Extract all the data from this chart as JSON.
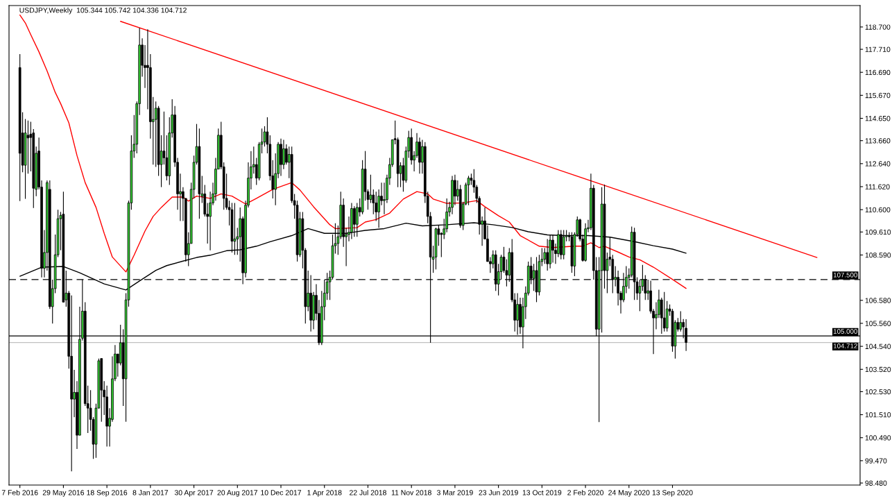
{
  "chart_data": {
    "type": "candlestick",
    "title": "USDJPY,Weekly  105.344 105.742 104.336 104.712",
    "color": "#000000",
    "x": [
      "2016-02-07",
      "2016-02-14",
      "2016-02-21",
      "2016-02-28",
      "2016-03-06",
      "2016-03-13",
      "2016-03-20",
      "2016-03-27",
      "2016-04-03",
      "2016-04-10",
      "2016-04-17",
      "2016-04-24",
      "2016-05-01",
      "2016-05-08",
      "2016-05-15",
      "2016-05-22",
      "2016-05-29",
      "2016-06-05",
      "2016-06-12",
      "2016-06-19",
      "2016-06-26",
      "2016-07-03",
      "2016-07-10",
      "2016-07-17",
      "2016-07-24",
      "2016-07-31",
      "2016-08-07",
      "2016-08-14",
      "2016-08-21",
      "2016-08-28",
      "2016-09-04",
      "2016-09-11",
      "2016-09-18",
      "2016-09-25",
      "2016-10-02",
      "2016-10-09",
      "2016-10-16",
      "2016-10-23",
      "2016-10-30",
      "2016-11-06",
      "2016-11-13",
      "2016-11-20",
      "2016-11-27",
      "2016-12-04",
      "2016-12-11",
      "2016-12-18",
      "2016-12-25",
      "2017-01-01",
      "2017-01-08",
      "2017-01-15",
      "2017-01-22",
      "2017-01-29",
      "2017-02-05",
      "2017-02-12",
      "2017-02-19",
      "2017-02-26",
      "2017-03-05",
      "2017-03-12",
      "2017-03-19",
      "2017-03-26",
      "2017-04-02",
      "2017-04-09",
      "2017-04-16",
      "2017-04-23",
      "2017-04-30",
      "2017-05-07",
      "2017-05-14",
      "2017-05-21",
      "2017-05-28",
      "2017-06-04",
      "2017-06-11",
      "2017-06-18",
      "2017-06-25",
      "2017-07-02",
      "2017-07-09",
      "2017-07-16",
      "2017-07-23",
      "2017-07-30",
      "2017-08-06",
      "2017-08-13",
      "2017-08-20",
      "2017-08-27",
      "2017-09-03",
      "2017-09-10",
      "2017-09-17",
      "2017-09-24",
      "2017-10-01",
      "2017-10-08",
      "2017-10-15",
      "2017-10-22",
      "2017-10-29",
      "2017-11-05",
      "2017-11-12",
      "2017-11-19",
      "2017-11-26",
      "2017-12-03",
      "2017-12-10",
      "2017-12-17",
      "2017-12-24",
      "2017-12-31",
      "2018-01-07",
      "2018-01-14",
      "2018-01-21",
      "2018-01-28",
      "2018-02-04",
      "2018-02-11",
      "2018-02-18",
      "2018-02-25",
      "2018-03-04",
      "2018-03-11",
      "2018-03-18",
      "2018-03-25",
      "2018-04-01",
      "2018-04-08",
      "2018-04-15",
      "2018-04-22",
      "2018-04-29",
      "2018-05-06",
      "2018-05-13",
      "2018-05-20",
      "2018-05-27",
      "2018-06-03",
      "2018-06-10",
      "2018-06-17",
      "2018-06-24",
      "2018-07-01",
      "2018-07-08",
      "2018-07-15",
      "2018-07-22",
      "2018-07-29",
      "2018-08-05",
      "2018-08-12",
      "2018-08-19",
      "2018-08-26",
      "2018-09-02",
      "2018-09-09",
      "2018-09-16",
      "2018-09-23",
      "2018-09-30",
      "2018-10-07",
      "2018-10-14",
      "2018-10-21",
      "2018-10-28",
      "2018-11-04",
      "2018-11-11",
      "2018-11-18",
      "2018-11-25",
      "2018-12-02",
      "2018-12-09",
      "2018-12-16",
      "2018-12-23",
      "2018-12-30",
      "2019-01-06",
      "2019-01-13",
      "2019-01-20",
      "2019-01-27",
      "2019-02-03",
      "2019-02-10",
      "2019-02-17",
      "2019-02-24",
      "2019-03-03",
      "2019-03-10",
      "2019-03-17",
      "2019-03-24",
      "2019-03-31",
      "2019-04-07",
      "2019-04-14",
      "2019-04-21",
      "2019-04-28",
      "2019-05-05",
      "2019-05-12",
      "2019-05-19",
      "2019-05-26",
      "2019-06-02",
      "2019-06-09",
      "2019-06-16",
      "2019-06-23",
      "2019-06-30",
      "2019-07-07",
      "2019-07-14",
      "2019-07-21",
      "2019-07-28",
      "2019-08-04",
      "2019-08-11",
      "2019-08-18",
      "2019-08-25",
      "2019-09-01",
      "2019-09-08",
      "2019-09-15",
      "2019-09-22",
      "2019-09-29",
      "2019-10-06",
      "2019-10-13",
      "2019-10-20",
      "2019-10-27",
      "2019-11-03",
      "2019-11-10",
      "2019-11-17",
      "2019-11-24",
      "2019-12-01",
      "2019-12-08",
      "2019-12-15",
      "2019-12-22",
      "2019-12-29",
      "2020-01-05",
      "2020-01-12",
      "2020-01-19",
      "2020-01-26",
      "2020-02-02",
      "2020-02-09",
      "2020-02-16",
      "2020-02-23",
      "2020-03-01",
      "2020-03-08",
      "2020-03-15",
      "2020-03-22",
      "2020-03-29",
      "2020-04-05",
      "2020-04-12",
      "2020-04-19",
      "2020-04-26",
      "2020-05-03",
      "2020-05-10",
      "2020-05-17",
      "2020-05-24",
      "2020-05-31",
      "2020-06-07",
      "2020-06-14",
      "2020-06-21",
      "2020-06-28",
      "2020-07-05",
      "2020-07-12",
      "2020-07-19",
      "2020-07-26",
      "2020-08-02",
      "2020-08-09",
      "2020-08-16",
      "2020-08-23",
      "2020-08-30",
      "2020-09-06",
      "2020-09-13",
      "2020-09-20",
      "2020-09-27",
      "2020-10-04",
      "2020-10-11",
      "2020-10-18"
    ],
    "ohlc": [
      [
        116.9,
        117.5,
        110.98,
        113.1
      ],
      [
        114.0,
        114.92,
        112.26,
        112.57
      ],
      [
        112.57,
        114.62,
        111.08,
        114.0
      ],
      [
        113.9,
        114.55,
        112.2,
        113.78
      ],
      [
        113.95,
        114.5,
        112.3,
        113.8
      ],
      [
        114.0,
        114.17,
        110.67,
        111.55
      ],
      [
        111.5,
        113.4,
        111.2,
        113.1
      ],
      [
        113.2,
        113.8,
        111.5,
        111.6
      ],
      [
        111.6,
        111.9,
        107.6,
        108.0
      ],
      [
        108.0,
        109.7,
        107.6,
        108.7
      ],
      [
        108.7,
        111.9,
        107.9,
        111.8
      ],
      [
        111.5,
        111.9,
        106.2,
        106.3
      ],
      [
        106.3,
        107.5,
        105.55,
        107.1
      ],
      [
        107.1,
        109.5,
        106.9,
        108.6
      ],
      [
        108.6,
        110.6,
        108.5,
        110.2
      ],
      [
        110.2,
        110.5,
        108.8,
        110.35
      ],
      [
        110.4,
        111.4,
        106.5,
        106.5
      ],
      [
        106.6,
        107.9,
        106.3,
        106.9
      ],
      [
        106.9,
        107.0,
        103.55,
        104.1
      ],
      [
        104.1,
        106.8,
        99.0,
        102.2
      ],
      [
        102.2,
        103.5,
        101.4,
        102.5
      ],
      [
        102.5,
        103.0,
        99.99,
        100.6
      ],
      [
        100.6,
        106.3,
        100.6,
        104.85
      ],
      [
        104.9,
        107.5,
        104.8,
        106.1
      ],
      [
        106.1,
        106.5,
        101.9,
        102.0
      ],
      [
        102.0,
        102.8,
        100.7,
        101.8
      ],
      [
        101.8,
        102.6,
        100.8,
        101.3
      ],
      [
        101.3,
        101.4,
        99.55,
        100.2
      ],
      [
        100.2,
        102.0,
        99.6,
        101.8
      ],
      [
        101.8,
        104.0,
        101.8,
        103.9
      ],
      [
        104.0,
        104.0,
        101.2,
        102.6
      ],
      [
        102.6,
        103.0,
        101.5,
        102.3
      ],
      [
        102.3,
        102.8,
        100.1,
        101.0
      ],
      [
        101.0,
        101.8,
        100.1,
        101.35
      ],
      [
        101.3,
        104.1,
        101.2,
        103.1
      ],
      [
        103.1,
        104.6,
        103.0,
        104.2
      ],
      [
        104.2,
        104.2,
        103.2,
        103.8
      ],
      [
        103.8,
        105.5,
        103.7,
        104.7
      ],
      [
        104.7,
        105.3,
        101.9,
        103.1
      ],
      [
        103.1,
        106.9,
        101.2,
        106.6
      ],
      [
        106.6,
        111.0,
        106.3,
        110.9
      ],
      [
        110.9,
        113.9,
        110.6,
        113.2
      ],
      [
        113.2,
        114.8,
        112.9,
        113.5
      ],
      [
        113.5,
        115.4,
        113.1,
        115.3
      ],
      [
        115.3,
        118.66,
        114.8,
        117.9
      ],
      [
        117.9,
        118.2,
        116.5,
        117.0
      ],
      [
        117.0,
        117.9,
        116.0,
        116.9
      ],
      [
        117.0,
        118.6,
        115.05,
        116.9
      ],
      [
        116.9,
        117.5,
        113.75,
        114.5
      ],
      [
        114.5,
        115.6,
        112.6,
        114.6
      ],
      [
        114.6,
        115.4,
        112.5,
        115.1
      ],
      [
        115.1,
        115.2,
        112.1,
        112.6
      ],
      [
        112.6,
        113.9,
        111.6,
        113.2
      ],
      [
        113.2,
        114.95,
        112.6,
        112.9
      ],
      [
        112.9,
        113.9,
        111.9,
        112.1
      ],
      [
        112.1,
        114.7,
        111.7,
        114.0
      ],
      [
        114.0,
        115.5,
        113.8,
        114.8
      ],
      [
        114.8,
        115.2,
        112.5,
        112.7
      ],
      [
        112.7,
        112.9,
        110.6,
        111.3
      ],
      [
        111.3,
        112.2,
        110.1,
        111.4
      ],
      [
        111.4,
        111.6,
        110.1,
        111.1
      ],
      [
        111.1,
        111.1,
        108.3,
        108.6
      ],
      [
        108.6,
        109.6,
        108.1,
        109.1
      ],
      [
        109.1,
        111.8,
        109.1,
        111.5
      ],
      [
        111.5,
        113.0,
        111.1,
        112.7
      ],
      [
        112.7,
        114.4,
        112.6,
        113.4
      ],
      [
        113.4,
        114.2,
        110.2,
        111.3
      ],
      [
        111.2,
        112.1,
        110.9,
        111.3
      ],
      [
        111.3,
        111.7,
        110.3,
        110.4
      ],
      [
        110.4,
        110.9,
        109.1,
        110.3
      ],
      [
        110.3,
        111.4,
        108.8,
        110.9
      ],
      [
        110.9,
        111.8,
        110.8,
        111.3
      ],
      [
        111.3,
        112.9,
        111.0,
        112.4
      ],
      [
        112.4,
        114.2,
        112.4,
        113.9
      ],
      [
        113.9,
        114.5,
        112.4,
        112.5
      ],
      [
        112.5,
        112.7,
        110.6,
        111.1
      ],
      [
        111.1,
        112.2,
        110.6,
        110.7
      ],
      [
        110.7,
        111.0,
        109.9,
        110.6
      ],
      [
        110.6,
        110.9,
        108.7,
        109.2
      ],
      [
        109.2,
        110.9,
        108.6,
        109.3
      ],
      [
        109.3,
        109.8,
        108.6,
        109.4
      ],
      [
        109.4,
        110.7,
        108.3,
        110.2
      ],
      [
        110.2,
        110.3,
        107.3,
        107.8
      ],
      [
        107.8,
        111.0,
        107.6,
        110.8
      ],
      [
        110.8,
        112.7,
        110.7,
        112.0
      ],
      [
        112.0,
        113.2,
        111.5,
        112.5
      ],
      [
        112.5,
        113.4,
        112.2,
        112.6
      ],
      [
        112.6,
        112.9,
        111.7,
        112.0
      ],
      [
        112.0,
        113.6,
        111.9,
        113.5
      ],
      [
        113.5,
        114.2,
        113.1,
        113.6
      ],
      [
        113.6,
        114.3,
        113.4,
        114.05
      ],
      [
        114.05,
        114.7,
        113.1,
        113.5
      ],
      [
        113.5,
        113.9,
        111.9,
        112.1
      ],
      [
        112.1,
        112.8,
        111.1,
        111.5
      ],
      [
        111.5,
        113.1,
        110.8,
        112.2
      ],
      [
        112.2,
        113.6,
        112.0,
        113.5
      ],
      [
        113.5,
        113.75,
        112.1,
        112.6
      ],
      [
        112.6,
        113.7,
        112.4,
        113.3
      ],
      [
        113.3,
        113.5,
        112.6,
        112.7
      ],
      [
        112.7,
        113.4,
        112.0,
        113.05
      ],
      [
        113.05,
        113.4,
        110.9,
        111.0
      ],
      [
        111.0,
        111.3,
        110.2,
        110.8
      ],
      [
        110.8,
        111.0,
        108.3,
        108.6
      ],
      [
        108.6,
        110.5,
        108.5,
        110.2
      ],
      [
        110.2,
        110.5,
        108.0,
        108.8
      ],
      [
        108.8,
        108.9,
        105.55,
        106.3
      ],
      [
        106.3,
        107.9,
        106.1,
        106.9
      ],
      [
        106.9,
        107.7,
        105.2,
        105.7
      ],
      [
        105.7,
        106.95,
        105.3,
        106.8
      ],
      [
        106.8,
        107.3,
        105.7,
        106.0
      ],
      [
        106.0,
        106.6,
        104.6,
        104.7
      ],
      [
        104.7,
        107.0,
        104.6,
        106.3
      ],
      [
        106.3,
        107.5,
        105.7,
        106.9
      ],
      [
        106.9,
        107.8,
        106.6,
        107.4
      ],
      [
        107.4,
        107.9,
        106.6,
        107.6
      ],
      [
        107.6,
        109.5,
        107.5,
        109.0
      ],
      [
        109.0,
        110.0,
        108.65,
        109.1
      ],
      [
        109.1,
        109.9,
        108.6,
        109.4
      ],
      [
        109.4,
        111.4,
        109.3,
        110.8
      ],
      [
        110.8,
        111.1,
        108.95,
        109.4
      ],
      [
        109.4,
        109.8,
        108.1,
        109.5
      ],
      [
        109.5,
        110.3,
        109.2,
        109.6
      ],
      [
        109.6,
        110.9,
        109.3,
        110.65
      ],
      [
        110.65,
        110.75,
        109.4,
        109.95
      ],
      [
        109.95,
        110.9,
        109.4,
        110.7
      ],
      [
        110.7,
        111.1,
        110.3,
        110.5
      ],
      [
        110.5,
        112.8,
        110.4,
        112.4
      ],
      [
        112.4,
        113.2,
        111.0,
        111.4
      ],
      [
        111.4,
        111.5,
        110.6,
        111.05
      ],
      [
        111.05,
        112.15,
        110.9,
        111.25
      ],
      [
        111.25,
        111.5,
        110.4,
        110.9
      ],
      [
        110.9,
        111.4,
        110.1,
        110.5
      ],
      [
        110.5,
        111.5,
        109.8,
        111.2
      ],
      [
        111.2,
        111.8,
        110.8,
        111.0
      ],
      [
        111.0,
        111.8,
        110.4,
        111.05
      ],
      [
        111.05,
        112.15,
        110.9,
        112.0
      ],
      [
        112.0,
        112.9,
        111.7,
        112.6
      ],
      [
        112.6,
        113.7,
        112.5,
        113.7
      ],
      [
        113.75,
        114.55,
        113.5,
        113.7
      ],
      [
        113.7,
        113.8,
        111.6,
        112.2
      ],
      [
        112.2,
        112.7,
        111.6,
        112.55
      ],
      [
        112.55,
        112.9,
        111.4,
        111.9
      ],
      [
        111.9,
        113.4,
        111.8,
        113.2
      ],
      [
        113.2,
        114.1,
        112.9,
        113.8
      ],
      [
        113.8,
        114.2,
        112.6,
        112.8
      ],
      [
        112.8,
        113.2,
        112.3,
        113.0
      ],
      [
        113.0,
        114.0,
        112.9,
        113.6
      ],
      [
        113.6,
        113.8,
        112.2,
        112.7
      ],
      [
        112.7,
        113.7,
        112.2,
        113.4
      ],
      [
        113.4,
        113.6,
        110.9,
        111.2
      ],
      [
        111.2,
        111.4,
        110.0,
        110.3
      ],
      [
        110.3,
        110.5,
        104.7,
        108.5
      ],
      [
        108.4,
        109.0,
        107.8,
        108.5
      ],
      [
        108.5,
        109.8,
        107.95,
        109.75
      ],
      [
        109.75,
        109.9,
        109.0,
        109.5
      ],
      [
        109.55,
        109.6,
        108.5,
        109.5
      ],
      [
        109.5,
        110.2,
        109.3,
        109.75
      ],
      [
        109.75,
        111.1,
        109.6,
        110.5
      ],
      [
        110.5,
        110.95,
        110.3,
        110.7
      ],
      [
        110.7,
        112.1,
        110.4,
        111.9
      ],
      [
        111.9,
        112.15,
        110.8,
        111.2
      ],
      [
        111.2,
        111.9,
        111.0,
        111.5
      ],
      [
        111.5,
        111.7,
        109.8,
        109.9
      ],
      [
        109.9,
        110.95,
        109.7,
        110.85
      ],
      [
        110.85,
        111.8,
        110.8,
        111.7
      ],
      [
        111.7,
        112.1,
        110.8,
        112.0
      ],
      [
        112.0,
        112.2,
        111.7,
        111.9
      ],
      [
        111.9,
        112.4,
        111.35,
        111.6
      ],
      [
        111.6,
        111.7,
        110.9,
        111.1
      ],
      [
        111.1,
        111.2,
        109.5,
        109.95
      ],
      [
        109.95,
        110.3,
        109.0,
        110.1
      ],
      [
        110.1,
        110.7,
        109.3,
        109.3
      ],
      [
        109.3,
        109.9,
        108.3,
        108.3
      ],
      [
        108.3,
        108.5,
        107.8,
        108.2
      ],
      [
        108.2,
        108.8,
        108.0,
        108.6
      ],
      [
        108.6,
        108.8,
        107.0,
        107.3
      ],
      [
        107.3,
        108.2,
        106.8,
        107.85
      ],
      [
        107.85,
        108.6,
        107.5,
        108.5
      ],
      [
        108.5,
        108.95,
        107.8,
        107.9
      ],
      [
        107.9,
        108.4,
        107.2,
        107.7
      ],
      [
        107.7,
        108.9,
        107.4,
        108.7
      ],
      [
        108.7,
        109.3,
        106.5,
        106.6
      ],
      [
        106.6,
        106.9,
        105.2,
        105.7
      ],
      [
        105.7,
        106.9,
        105.05,
        106.4
      ],
      [
        106.4,
        106.7,
        105.1,
        105.4
      ],
      [
        105.4,
        106.7,
        104.45,
        106.3
      ],
      [
        106.3,
        107.2,
        105.75,
        106.9
      ],
      [
        106.9,
        108.3,
        106.8,
        108.1
      ],
      [
        108.1,
        108.5,
        107.3,
        107.55
      ],
      [
        107.55,
        108.2,
        107.0,
        107.9
      ],
      [
        107.9,
        108.5,
        106.5,
        106.95
      ],
      [
        106.95,
        108.6,
        106.8,
        108.3
      ],
      [
        108.3,
        108.9,
        108.1,
        108.4
      ],
      [
        108.4,
        108.9,
        108.2,
        108.7
      ],
      [
        108.7,
        109.3,
        107.9,
        108.2
      ],
      [
        108.2,
        109.5,
        108.0,
        109.25
      ],
      [
        109.25,
        109.5,
        108.25,
        108.8
      ],
      [
        108.8,
        109.1,
        108.2,
        108.65
      ],
      [
        108.65,
        109.7,
        108.5,
        109.5
      ],
      [
        109.5,
        109.7,
        108.4,
        108.6
      ],
      [
        108.6,
        109.7,
        108.4,
        109.4
      ],
      [
        109.4,
        109.7,
        109.2,
        109.45
      ],
      [
        109.45,
        109.6,
        109.2,
        109.4
      ],
      [
        109.4,
        109.6,
        107.8,
        108.1
      ],
      [
        108.1,
        109.6,
        107.65,
        109.5
      ],
      [
        109.5,
        110.3,
        109.4,
        110.15
      ],
      [
        110.15,
        110.2,
        109.2,
        109.3
      ],
      [
        109.3,
        109.5,
        108.3,
        108.35
      ],
      [
        108.35,
        110.0,
        108.3,
        109.75
      ],
      [
        109.75,
        110.15,
        109.6,
        109.8
      ],
      [
        109.8,
        112.2,
        109.7,
        111.55
      ],
      [
        111.55,
        111.7,
        107.5,
        107.9
      ],
      [
        107.9,
        108.5,
        105.0,
        105.3
      ],
      [
        105.3,
        108.5,
        101.18,
        107.9
      ],
      [
        107.9,
        111.6,
        105.15,
        110.85
      ],
      [
        110.85,
        111.71,
        107.1,
        107.9
      ],
      [
        107.9,
        108.7,
        106.9,
        108.4
      ],
      [
        108.5,
        109.4,
        108.1,
        108.4
      ],
      [
        108.4,
        108.6,
        106.9,
        107.5
      ],
      [
        107.5,
        108.1,
        107.2,
        107.6
      ],
      [
        107.6,
        107.9,
        106.35,
        106.9
      ],
      [
        106.9,
        107.0,
        106.0,
        106.6
      ],
      [
        106.6,
        107.8,
        106.5,
        107.2
      ],
      [
        107.2,
        108.1,
        106.9,
        107.6
      ],
      [
        107.6,
        108.0,
        107.1,
        107.7
      ],
      [
        107.7,
        109.85,
        107.6,
        109.6
      ],
      [
        109.6,
        109.8,
        106.6,
        107.4
      ],
      [
        107.4,
        107.6,
        106.6,
        106.9
      ],
      [
        106.9,
        107.5,
        106.1,
        107.2
      ],
      [
        107.2,
        108.15,
        107.0,
        107.5
      ],
      [
        107.5,
        107.7,
        106.6,
        106.9
      ],
      [
        106.9,
        107.5,
        106.6,
        107.0
      ],
      [
        107.0,
        107.45,
        106.0,
        106.1
      ],
      [
        106.1,
        106.2,
        104.2,
        105.8
      ],
      [
        105.8,
        106.5,
        105.3,
        105.95
      ],
      [
        105.95,
        107.05,
        105.8,
        106.6
      ],
      [
        106.6,
        106.7,
        105.1,
        105.8
      ],
      [
        105.8,
        106.95,
        105.2,
        105.35
      ],
      [
        105.35,
        106.55,
        105.2,
        106.2
      ],
      [
        106.2,
        106.4,
        105.9,
        106.1
      ],
      [
        106.1,
        106.2,
        104.3,
        104.55
      ],
      [
        104.55,
        105.7,
        104.0,
        105.6
      ],
      [
        105.6,
        105.8,
        105.2,
        105.3
      ],
      [
        105.3,
        106.1,
        105.2,
        105.6
      ],
      [
        105.6,
        105.75,
        104.9,
        105.4
      ],
      [
        105.344,
        105.742,
        104.336,
        104.712
      ]
    ],
    "colors": [
      "#000000",
      "#000000",
      "#33cc33",
      "#000000",
      "#000000",
      "#000000",
      "#33cc33",
      "#000000",
      "#000000",
      "#33cc33",
      "#33cc33",
      "#000000",
      "#33cc33",
      "#33cc33",
      "#33cc33",
      "#33cc33",
      "#000000",
      "#33cc33",
      "#000000",
      "#000000",
      "#33cc33",
      "#000000",
      "#33cc33",
      "#33cc33",
      "#000000",
      "#000000",
      "#000000",
      "#000000",
      "#33cc33",
      "#33cc33",
      "#000000",
      "#000000",
      "#000000",
      "#33cc33",
      "#33cc33",
      "#33cc33",
      "#000000",
      "#33cc33",
      "#000000",
      "#33cc33",
      "#33cc33",
      "#33cc33",
      "#33cc33",
      "#33cc33",
      "#33cc33",
      "#000000",
      "#000000",
      "#000000",
      "#000000",
      "#33cc33",
      "#33cc33",
      "#000000",
      "#33cc33",
      "#000000",
      "#000000",
      "#33cc33",
      "#33cc33",
      "#000000",
      "#000000",
      "#33cc33",
      "#000000",
      "#000000",
      "#33cc33",
      "#33cc33",
      "#33cc33",
      "#33cc33",
      "#000000",
      "#33cc33",
      "#000000",
      "#000000",
      "#33cc33",
      "#33cc33",
      "#33cc33",
      "#33cc33",
      "#000000",
      "#000000",
      "#000000",
      "#000000",
      "#000000",
      "#33cc33",
      "#33cc33",
      "#33cc33",
      "#000000",
      "#33cc33",
      "#33cc33",
      "#33cc33",
      "#33cc33",
      "#000000",
      "#33cc33",
      "#33cc33",
      "#33cc33",
      "#000000",
      "#000000",
      "#000000",
      "#33cc33",
      "#33cc33",
      "#000000",
      "#33cc33",
      "#000000",
      "#33cc33",
      "#000000",
      "#000000",
      "#000000",
      "#33cc33",
      "#000000",
      "#000000",
      "#33cc33",
      "#000000",
      "#33cc33",
      "#000000",
      "#000000",
      "#33cc33",
      "#33cc33",
      "#33cc33",
      "#33cc33",
      "#33cc33",
      "#33cc33",
      "#33cc33",
      "#33cc33",
      "#000000",
      "#33cc33",
      "#33cc33",
      "#33cc33",
      "#000000",
      "#33cc33",
      "#000000",
      "#33cc33",
      "#000000",
      "#000000",
      "#33cc33",
      "#000000",
      "#000000",
      "#33cc33",
      "#000000",
      "#33cc33",
      "#33cc33",
      "#33cc33",
      "#33cc33",
      "#000000",
      "#000000",
      "#33cc33",
      "#000000",
      "#33cc33",
      "#33cc33",
      "#000000",
      "#33cc33",
      "#33cc33",
      "#000000",
      "#33cc33",
      "#000000",
      "#000000",
      "#000000",
      "#33cc33",
      "#33cc33",
      "#000000",
      "#000000",
      "#33cc33",
      "#33cc33",
      "#33cc33",
      "#33cc33",
      "#000000",
      "#33cc33",
      "#000000",
      "#33cc33",
      "#33cc33",
      "#33cc33",
      "#000000",
      "#000000",
      "#000000",
      "#000000",
      "#33cc33",
      "#000000",
      "#000000",
      "#000000",
      "#33cc33",
      "#000000",
      "#33cc33",
      "#33cc33",
      "#000000",
      "#000000",
      "#33cc33",
      "#000000",
      "#000000",
      "#33cc33",
      "#000000",
      "#33cc33",
      "#33cc33",
      "#33cc33",
      "#000000",
      "#33cc33",
      "#000000",
      "#33cc33",
      "#33cc33",
      "#33cc33",
      "#000000",
      "#33cc33",
      "#000000",
      "#000000",
      "#33cc33",
      "#000000",
      "#33cc33",
      "#33cc33",
      "#000000",
      "#000000",
      "#33cc33",
      "#33cc33",
      "#000000",
      "#000000",
      "#33cc33",
      "#33cc33",
      "#33cc33",
      "#000000",
      "#000000",
      "#33cc33",
      "#33cc33",
      "#000000",
      "#33cc33",
      "#000000",
      "#000000",
      "#33cc33",
      "#000000",
      "#000000",
      "#33cc33",
      "#33cc33",
      "#33cc33",
      "#33cc33",
      "#000000",
      "#000000",
      "#33cc33",
      "#33cc33",
      "#000000",
      "#33cc33",
      "#000000",
      "#000000",
      "#33cc33",
      "#33cc33",
      "#000000",
      "#000000",
      "#33cc33",
      "#000000",
      "#000000",
      "#33cc33",
      "#000000",
      "#33cc33",
      "#000000",
      "#000000"
    ],
    "series": [
      {
        "type": "line",
        "color": "#ff0000",
        "x": [
          "2016-02-07",
          "2016-02-21",
          "2016-03-06",
          "2016-03-27",
          "2016-04-17",
          "2016-05-08",
          "2016-05-22",
          "2016-06-12",
          "2016-07-03",
          "2016-07-24",
          "2016-08-21",
          "2016-09-11",
          "2016-10-02",
          "2016-11-06",
          "2016-11-27",
          "2016-12-25",
          "2017-01-15",
          "2017-02-05",
          "2017-03-05",
          "2017-04-02",
          "2017-04-16",
          "2017-05-07",
          "2017-06-11",
          "2017-07-09",
          "2017-08-06",
          "2017-09-10",
          "2017-10-08",
          "2017-11-19",
          "2018-01-07",
          "2018-01-28",
          "2018-03-04",
          "2018-04-15",
          "2018-04-29",
          "2018-06-24",
          "2018-07-15",
          "2018-08-12",
          "2018-09-16",
          "2018-10-21",
          "2018-11-25",
          "2018-12-23",
          "2019-01-06",
          "2019-02-10",
          "2019-03-24",
          "2019-04-28",
          "2019-05-19",
          "2019-06-23",
          "2019-07-21",
          "2019-08-18",
          "2019-10-06",
          "2019-11-10",
          "2020-01-05",
          "2020-01-26",
          "2020-02-16",
          "2020-03-08",
          "2020-03-22",
          "2020-04-26",
          "2020-05-24",
          "2020-06-21",
          "2020-07-26",
          "2020-09-13",
          "2020-10-18"
        ],
        "values": [
          119.23,
          118.88,
          118.36,
          117.6,
          116.75,
          115.8,
          115.3,
          114.45,
          113.0,
          111.8,
          110.7,
          109.55,
          108.5,
          107.84,
          108.58,
          109.65,
          110.3,
          110.7,
          111.16,
          111.16,
          110.98,
          111.2,
          111.1,
          111.3,
          111.2,
          110.85,
          111.1,
          111.5,
          111.8,
          111.47,
          110.73,
          109.93,
          109.76,
          109.8,
          110.05,
          110.16,
          110.45,
          111.07,
          111.4,
          111.3,
          111.07,
          110.88,
          110.9,
          111.0,
          110.73,
          110.33,
          110.05,
          109.45,
          108.98,
          108.92,
          108.98,
          108.98,
          109.13,
          108.92,
          108.98,
          108.72,
          108.5,
          108.38,
          108.05,
          107.51,
          107.11
        ]
      },
      {
        "type": "line",
        "color": "#000000",
        "x": [
          "2016-02-07",
          "2016-04-03",
          "2016-05-29",
          "2016-07-10",
          "2016-09-11",
          "2016-11-06",
          "2016-12-11",
          "2017-01-22",
          "2017-02-19",
          "2017-04-02",
          "2017-05-07",
          "2017-06-11",
          "2017-07-23",
          "2017-08-27",
          "2017-10-08",
          "2017-11-12",
          "2018-01-07",
          "2018-02-18",
          "2018-04-01",
          "2018-05-27",
          "2018-07-15",
          "2018-09-02",
          "2018-10-28",
          "2018-12-09",
          "2019-02-10",
          "2019-04-21",
          "2019-06-09",
          "2019-07-28",
          "2019-09-08",
          "2019-10-27",
          "2019-12-08",
          "2020-02-09",
          "2020-04-05",
          "2020-06-07",
          "2020-07-26",
          "2020-09-13",
          "2020-10-18"
        ],
        "values": [
          107.65,
          108.05,
          108.08,
          107.8,
          107.31,
          107.04,
          107.44,
          107.91,
          108.12,
          108.32,
          108.48,
          108.58,
          108.78,
          108.82,
          108.98,
          109.18,
          109.45,
          109.76,
          109.55,
          109.55,
          109.68,
          109.76,
          110.0,
          109.88,
          109.93,
          110.02,
          109.93,
          109.81,
          109.62,
          109.48,
          109.45,
          109.45,
          109.38,
          109.18,
          109.0,
          108.85,
          108.67
        ]
      },
      {
        "type": "line",
        "color": "#ff0000",
        "x": [
          "2016-10-23",
          "2021-09-20"
        ],
        "values": [
          118.95,
          108.48
        ]
      }
    ],
    "ref_lines": [
      {
        "axis": "y",
        "value": 107.5,
        "label": "107.500",
        "color": "#000000",
        "line_style": "dashed"
      },
      {
        "axis": "y",
        "value": 105.0,
        "label": "105.000",
        "color": "#000000",
        "line_style": "solid"
      },
      {
        "axis": "y",
        "value": 104.712,
        "label": "104.712",
        "color": "#c0c0c0",
        "line_style": "solid"
      }
    ],
    "xlim": [
      "2016-01-10",
      "2022-01-09"
    ],
    "xticks": [
      {
        "value": "2016-02-07",
        "label": "7 Feb 2016"
      },
      {
        "value": "2016-05-29",
        "label": "29 May 2016"
      },
      {
        "value": "2016-09-18",
        "label": "18 Sep 2016"
      },
      {
        "value": "2017-01-08",
        "label": "8 Jan 2017"
      },
      {
        "value": "2017-04-30",
        "label": "30 Apr 2017"
      },
      {
        "value": "2017-08-20",
        "label": "20 Aug 2017"
      },
      {
        "value": "2017-12-10",
        "label": "10 Dec 2017"
      },
      {
        "value": "2018-04-01",
        "label": "1 Apr 2018"
      },
      {
        "value": "2018-07-22",
        "label": "22 Jul 2018"
      },
      {
        "value": "2018-11-11",
        "label": "11 Nov 2018"
      },
      {
        "value": "2019-03-03",
        "label": "3 Mar 2019"
      },
      {
        "value": "2019-06-23",
        "label": "23 Jun 2019"
      },
      {
        "value": "2019-10-13",
        "label": "13 Oct 2019"
      },
      {
        "value": "2020-02-02",
        "label": "2 Feb 2020"
      },
      {
        "value": "2020-05-24",
        "label": "24 May 2020"
      },
      {
        "value": "2020-09-13",
        "label": "13 Sep 2020"
      }
    ],
    "ylim": [
      98.39,
      119.65
    ],
    "yticks": [
      {
        "value": 118.7,
        "label": "118.700"
      },
      {
        "value": 117.71,
        "label": "117.710"
      },
      {
        "value": 116.69,
        "label": "116.690"
      },
      {
        "value": 115.67,
        "label": "115.670"
      },
      {
        "value": 114.65,
        "label": "114.650"
      },
      {
        "value": 113.66,
        "label": "113.660"
      },
      {
        "value": 112.64,
        "label": "112.640"
      },
      {
        "value": 111.62,
        "label": "111.620"
      },
      {
        "value": 110.6,
        "label": "110.600"
      },
      {
        "value": 109.61,
        "label": "109.610"
      },
      {
        "value": 108.59,
        "label": "108.590"
      },
      {
        "value": 106.58,
        "label": "106.580"
      },
      {
        "value": 105.56,
        "label": "105.560"
      },
      {
        "value": 104.54,
        "label": "104.540"
      },
      {
        "value": 103.52,
        "label": "103.520"
      },
      {
        "value": 102.53,
        "label": "102.530"
      },
      {
        "value": 101.51,
        "label": "101.510"
      },
      {
        "value": 100.49,
        "label": "100.490"
      },
      {
        "value": 99.47,
        "label": "99.470"
      },
      {
        "value": 98.48,
        "label": "98.480"
      }
    ]
  }
}
